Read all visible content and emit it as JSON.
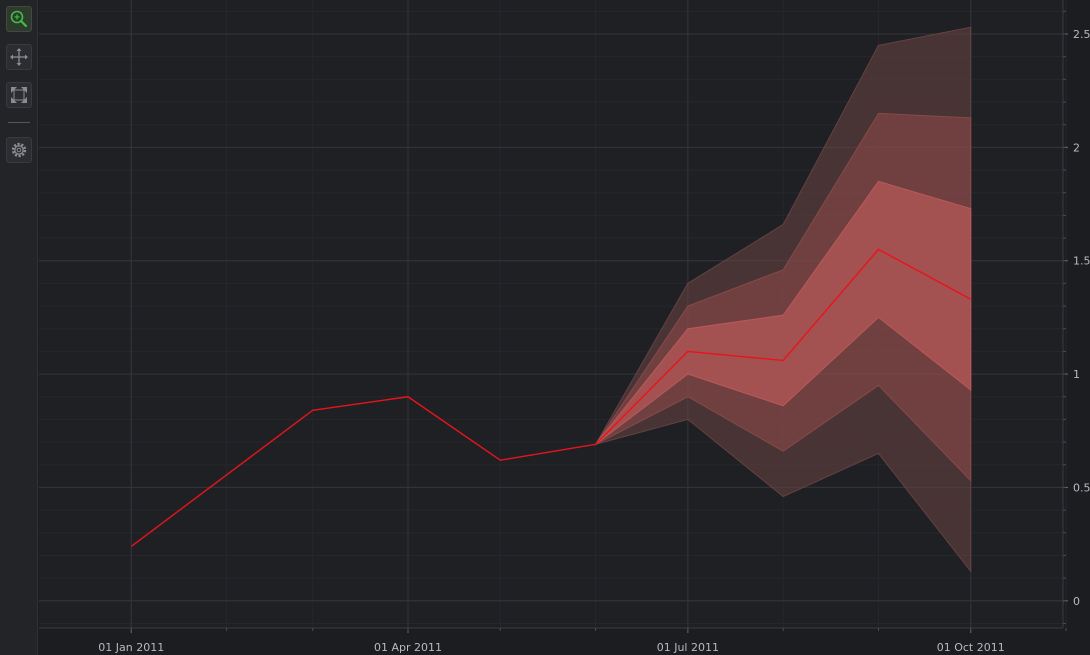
{
  "toolbar": {
    "buttons": [
      {
        "name": "zoom-tool",
        "icon": "zoom-magnifier-icon",
        "active": true
      },
      {
        "name": "pan-tool",
        "icon": "pan-arrows-icon",
        "active": false
      },
      {
        "name": "zoom-extents-tool",
        "icon": "zoom-extents-icon",
        "active": false
      },
      {
        "name": "settings-tool",
        "icon": "gear-icon",
        "active": false
      }
    ],
    "active_color": "#3fbf3f",
    "idle_color": "#8a8c92"
  },
  "chart_data": {
    "type": "line",
    "title": "",
    "xlabel": "",
    "ylabel": "",
    "x_axis": {
      "type": "date",
      "range": [
        "2010-12-02",
        "2011-10-31"
      ],
      "ticks": [
        "2011-01-01",
        "2011-04-01",
        "2011-07-01",
        "2011-10-01"
      ],
      "tick_labels": [
        "01 Jan 2011",
        "01 Apr 2011",
        "01 Jul 2011",
        "01 Oct 2011"
      ]
    },
    "y_axis": {
      "range": [
        -0.12,
        2.65
      ],
      "ticks": [
        0,
        0.5,
        1,
        1.5,
        2,
        2.5
      ],
      "tick_labels": [
        "0",
        "0.5",
        "1",
        "1.5",
        "2",
        "2.5"
      ],
      "position": "right"
    },
    "grid": true,
    "series": [
      {
        "color": "#e8141c",
        "points": [
          [
            "2011-01-01",
            0.24
          ],
          [
            "2011-03-01",
            0.84
          ],
          [
            "2011-04-01",
            0.9
          ],
          [
            "2011-05-01",
            0.62
          ],
          [
            "2011-06-01",
            0.69
          ],
          [
            "2011-07-01",
            1.1
          ],
          [
            "2011-08-01",
            1.06
          ],
          [
            "2011-09-01",
            1.55
          ],
          [
            "2011-10-01",
            1.33
          ]
        ]
      }
    ],
    "bands": [
      {
        "color": "#6a4444",
        "opacity": 0.55,
        "x": [
          "2011-06-01",
          "2011-07-01",
          "2011-08-01",
          "2011-09-01",
          "2011-10-01"
        ],
        "upper": [
          0.69,
          1.4,
          1.66,
          2.45,
          2.53
        ],
        "lower": [
          0.69,
          0.8,
          0.46,
          0.65,
          0.13
        ]
      },
      {
        "color": "#8c4a4a",
        "opacity": 0.6,
        "x": [
          "2011-06-01",
          "2011-07-01",
          "2011-08-01",
          "2011-09-01",
          "2011-10-01"
        ],
        "upper": [
          0.69,
          1.3,
          1.46,
          2.15,
          2.13
        ],
        "lower": [
          0.69,
          0.9,
          0.66,
          0.95,
          0.53
        ]
      },
      {
        "color": "#c05a5a",
        "opacity": 0.65,
        "x": [
          "2011-06-01",
          "2011-07-01",
          "2011-08-01",
          "2011-09-01",
          "2011-10-01"
        ],
        "upper": [
          0.69,
          1.2,
          1.26,
          1.85,
          1.73
        ],
        "lower": [
          0.69,
          1.0,
          0.86,
          1.25,
          0.93
        ]
      }
    ]
  }
}
